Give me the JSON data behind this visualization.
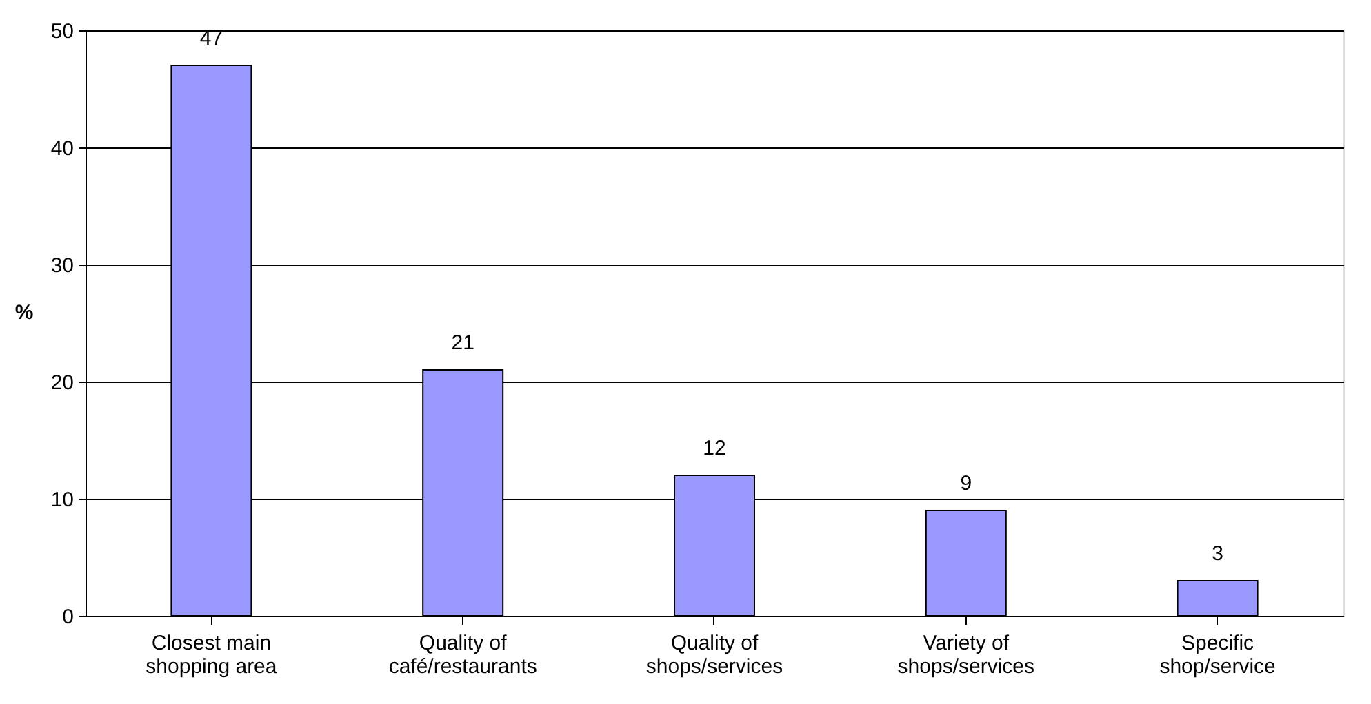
{
  "chart_data": {
    "type": "bar",
    "ylabel": "%",
    "categories": [
      "Closest main shopping area",
      "Quality of café/restaurants",
      "Quality of shops/services",
      "Variety of shops/services",
      "Specific shop/service"
    ],
    "values": [
      47,
      21,
      12,
      9,
      3
    ],
    "color": "#9999ff",
    "ylim": [
      0,
      50
    ],
    "yticks": [
      0,
      10,
      20,
      30,
      40,
      50
    ],
    "grid": "y",
    "data_labels": true
  }
}
